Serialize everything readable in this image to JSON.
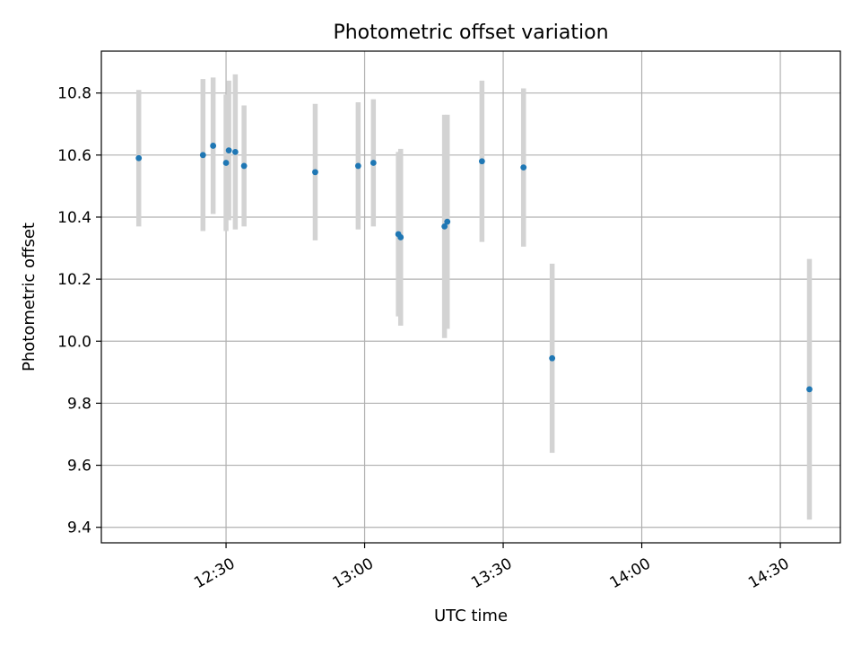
{
  "chart_data": {
    "type": "scatter",
    "title": "Photometric offset variation",
    "xlabel": "UTC time",
    "ylabel": "Photometric offset",
    "x_unit": "UTC time (HH:MM)",
    "xlim": [
      "12:03",
      "14:43"
    ],
    "ylim": [
      9.35,
      10.935
    ],
    "x_ticks": [
      "12:30",
      "13:00",
      "13:30",
      "14:00",
      "14:30"
    ],
    "y_ticks": [
      9.4,
      9.6,
      9.8,
      10.0,
      10.2,
      10.4,
      10.6,
      10.8
    ],
    "y_tick_labels": [
      "9.4",
      "9.6",
      "9.8",
      "10.0",
      "10.2",
      "10.4",
      "10.6",
      "10.8"
    ],
    "grid": true,
    "legend": false,
    "colors": {
      "point": "#1f77b4",
      "errorbar": "#d3d3d3"
    },
    "points": [
      {
        "x": "12:11:06",
        "y": 10.59,
        "err": 0.22
      },
      {
        "x": "12:25:00",
        "y": 10.6,
        "err": 0.245
      },
      {
        "x": "12:27:12",
        "y": 10.63,
        "err": 0.22
      },
      {
        "x": "12:30:00",
        "y": 10.575,
        "err": 0.22
      },
      {
        "x": "12:30:36",
        "y": 10.615,
        "err": 0.225
      },
      {
        "x": "12:32:00",
        "y": 10.61,
        "err": 0.25
      },
      {
        "x": "12:33:54",
        "y": 10.565,
        "err": 0.195
      },
      {
        "x": "12:49:18",
        "y": 10.545,
        "err": 0.22
      },
      {
        "x": "12:58:36",
        "y": 10.565,
        "err": 0.205
      },
      {
        "x": "13:01:54",
        "y": 10.575,
        "err": 0.205
      },
      {
        "x": "13:07:18",
        "y": 10.345,
        "err": 0.265
      },
      {
        "x": "13:07:48",
        "y": 10.335,
        "err": 0.285
      },
      {
        "x": "13:17:18",
        "y": 10.37,
        "err": 0.36
      },
      {
        "x": "13:17:54",
        "y": 10.385,
        "err": 0.345
      },
      {
        "x": "13:25:24",
        "y": 10.58,
        "err": 0.26
      },
      {
        "x": "13:34:24",
        "y": 10.56,
        "err": 0.255
      },
      {
        "x": "13:40:36",
        "y": 9.945,
        "err": 0.305
      },
      {
        "x": "14:36:18",
        "y": 9.845,
        "err": 0.42
      }
    ]
  }
}
